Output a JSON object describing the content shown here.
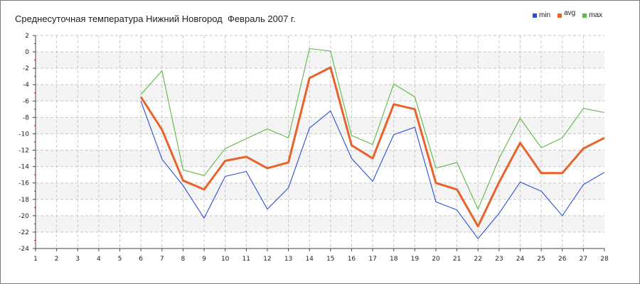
{
  "chart_data": {
    "type": "line",
    "title": "Среднесуточная температура Нижний Новгород  Февраль 2007 г.",
    "x": [
      1,
      2,
      3,
      4,
      5,
      6,
      7,
      8,
      9,
      10,
      11,
      12,
      13,
      14,
      15,
      16,
      17,
      18,
      19,
      20,
      21,
      22,
      23,
      24,
      25,
      26,
      27,
      28
    ],
    "xlim": [
      1,
      28
    ],
    "ylim": [
      -24,
      2
    ],
    "yticks": [
      2,
      0,
      -2,
      -4,
      -6,
      -8,
      -10,
      -12,
      -14,
      -16,
      -18,
      -20,
      -22,
      -24
    ],
    "grid": true,
    "legend_position": "top-right",
    "series": [
      {
        "name": "min",
        "color": "#2a4fd4",
        "values": [
          null,
          null,
          null,
          null,
          null,
          -6.0,
          -13.1,
          -16.3,
          -20.3,
          -15.2,
          -14.6,
          -19.2,
          -16.6,
          -9.3,
          -7.2,
          -13.0,
          -15.8,
          -10.1,
          -9.2,
          -18.3,
          -19.3,
          -22.8,
          -19.7,
          -15.9,
          -17.0,
          -20.0,
          -16.2,
          -14.7
        ]
      },
      {
        "name": "avg",
        "color": "#e8632b",
        "values": [
          null,
          null,
          null,
          null,
          null,
          -5.5,
          -9.5,
          -15.7,
          -16.8,
          -13.3,
          -12.8,
          -14.2,
          -13.5,
          -3.2,
          -1.9,
          -11.4,
          -13.0,
          -6.4,
          -7.0,
          -16.0,
          -16.8,
          -21.3,
          -15.9,
          -11.1,
          -14.8,
          -14.8,
          -11.8,
          -10.5
        ]
      },
      {
        "name": "max",
        "color": "#5db845",
        "values": [
          null,
          null,
          null,
          null,
          null,
          -5.2,
          -2.3,
          -14.4,
          -15.1,
          -11.8,
          -10.6,
          -9.4,
          -10.5,
          0.4,
          0.1,
          -10.2,
          -11.3,
          -3.9,
          -5.5,
          -14.2,
          -13.5,
          -19.2,
          -13.0,
          -8.1,
          -11.7,
          -10.5,
          -6.9,
          -7.4
        ]
      }
    ]
  }
}
